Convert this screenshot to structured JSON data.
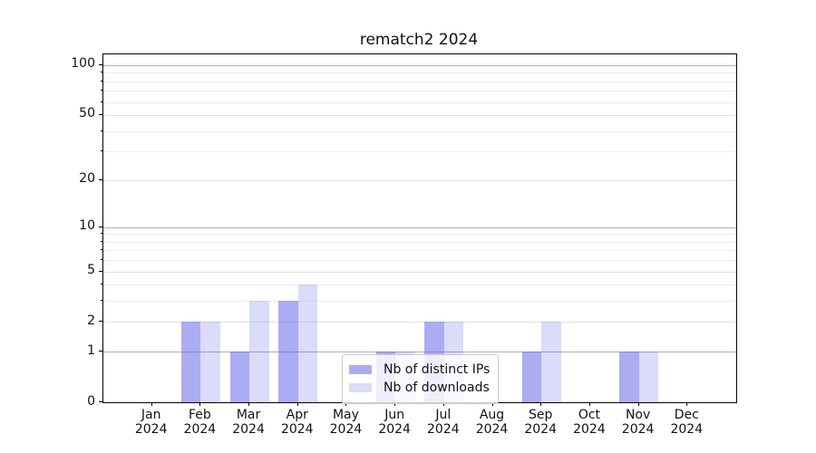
{
  "title": "rematch2 2024",
  "chart_data": {
    "type": "bar",
    "title": "rematch2 2024",
    "categories": [
      "Jan",
      "Feb",
      "Mar",
      "Apr",
      "May",
      "Jun",
      "Jul",
      "Aug",
      "Sep",
      "Oct",
      "Nov",
      "Dec"
    ],
    "category_year": "2024",
    "series": [
      {
        "name": "Nb of distinct IPs",
        "color": "rgba(90,90,230,0.5)",
        "values": [
          0,
          2,
          1,
          3,
          0,
          1,
          2,
          0,
          1,
          0,
          1,
          0
        ]
      },
      {
        "name": "Nb of downloads",
        "color": "rgba(90,90,230,0.22)",
        "values": [
          0,
          2,
          3,
          4,
          0,
          1,
          2,
          0,
          2,
          0,
          1,
          0
        ]
      }
    ],
    "yscale": "log1p",
    "yticks": [
      0,
      1,
      2,
      5,
      10,
      20,
      50,
      100
    ],
    "yminorticks": [
      3,
      4,
      6,
      7,
      8,
      9,
      30,
      40,
      60,
      70,
      80,
      90
    ],
    "ylim": [
      0,
      116
    ],
    "grid": "horizontal",
    "legend_position": "lower-center"
  },
  "colors": {
    "decade_grid": "#b0b0b0",
    "mid_grid": "#e0e0e0",
    "minor_grid": "#ececec",
    "spine": "#000000",
    "text": "#111111"
  }
}
